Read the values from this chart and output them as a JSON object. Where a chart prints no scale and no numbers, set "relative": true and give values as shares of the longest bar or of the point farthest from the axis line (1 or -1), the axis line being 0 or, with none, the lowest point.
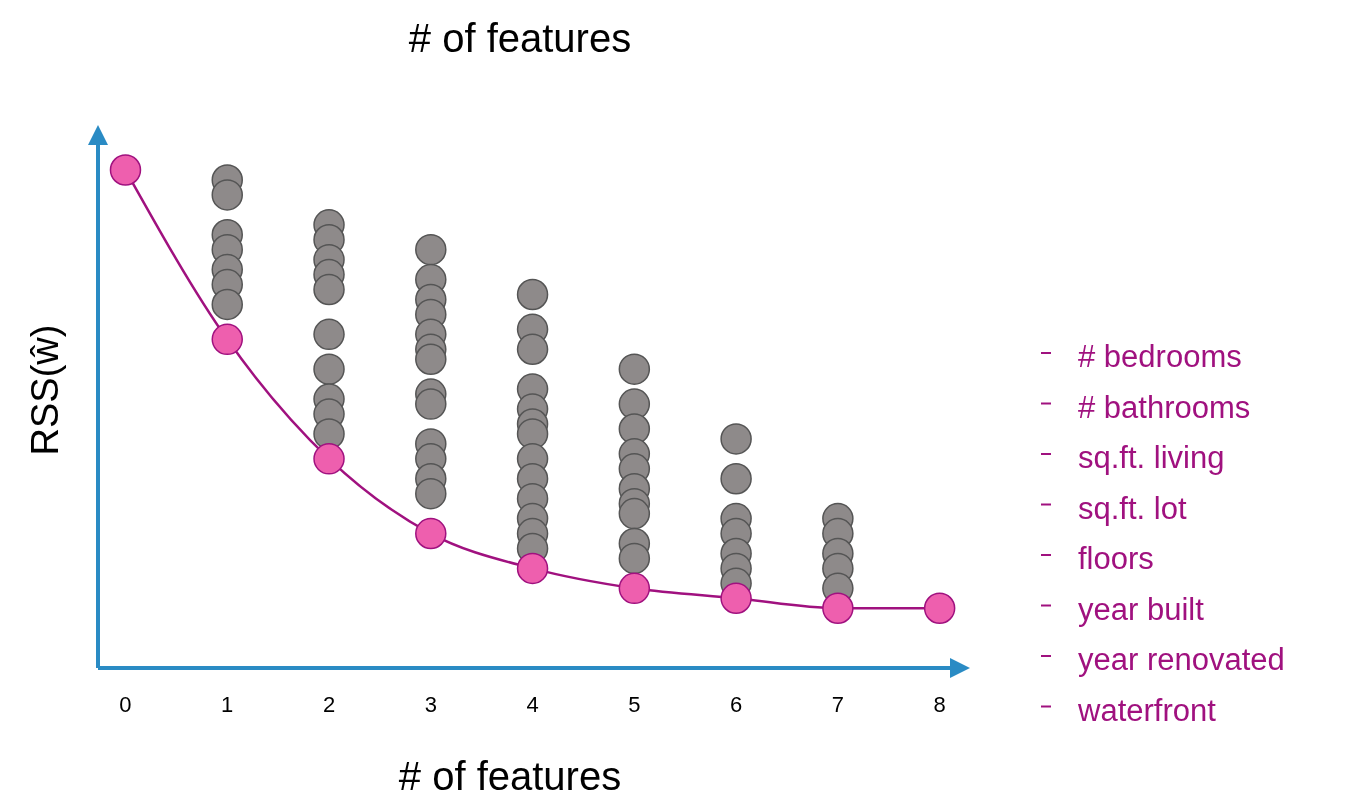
{
  "chart_data": {
    "type": "scatter",
    "title": "# of features",
    "xlabel": "# of features",
    "ylabel": "RSS(ŵ)",
    "relative": true,
    "xlim": [
      -0.27,
      8.2
    ],
    "xticks": [
      0,
      1,
      2,
      3,
      4,
      5,
      6,
      7,
      8
    ],
    "marker": "circle",
    "series": [
      {
        "color": "#8e8a8a",
        "x": [
          1,
          1,
          1,
          1,
          1,
          1,
          1,
          2,
          2,
          2,
          2,
          2,
          2,
          2,
          2,
          2,
          2,
          3,
          3,
          3,
          3,
          3,
          3,
          3,
          3,
          3,
          3,
          3,
          3,
          3,
          4,
          4,
          4,
          4,
          4,
          4,
          4,
          4,
          4,
          4,
          4,
          4,
          4,
          5,
          5,
          5,
          5,
          5,
          5,
          5,
          5,
          5,
          5,
          6,
          6,
          6,
          6,
          6,
          6,
          6,
          7,
          7,
          7,
          7,
          7
        ],
        "values": [
          0.98,
          0.95,
          0.87,
          0.84,
          0.8,
          0.77,
          0.73,
          0.89,
          0.86,
          0.82,
          0.79,
          0.76,
          0.67,
          0.6,
          0.54,
          0.51,
          0.47,
          0.84,
          0.78,
          0.74,
          0.71,
          0.67,
          0.64,
          0.62,
          0.55,
          0.53,
          0.45,
          0.42,
          0.38,
          0.35,
          0.75,
          0.68,
          0.64,
          0.56,
          0.52,
          0.49,
          0.47,
          0.42,
          0.38,
          0.34,
          0.3,
          0.27,
          0.24,
          0.6,
          0.53,
          0.48,
          0.43,
          0.4,
          0.36,
          0.33,
          0.31,
          0.25,
          0.22,
          0.46,
          0.38,
          0.3,
          0.27,
          0.23,
          0.2,
          0.17,
          0.3,
          0.27,
          0.23,
          0.2,
          0.16
        ]
      },
      {
        "type": "line",
        "color": "#a0117f",
        "colors": [
          "#ee5fae",
          "#ee5fae",
          "#ee5fae",
          "#ee5fae",
          "#ee5fae",
          "#ee5fae",
          "#ee5fae",
          "#ee5fae",
          "#ee5fae"
        ],
        "x": [
          0,
          1,
          2,
          3,
          4,
          5,
          6,
          7,
          8
        ],
        "values": [
          1,
          0.66,
          0.42,
          0.27,
          0.2,
          0.16,
          0.14,
          0.12,
          0.12
        ]
      }
    ],
    "annotations": [
      "# bedrooms",
      "# bathrooms",
      "sq.ft. living",
      "sq.ft. lot",
      "floors",
      "year built",
      "year renovated",
      "waterfront"
    ]
  }
}
